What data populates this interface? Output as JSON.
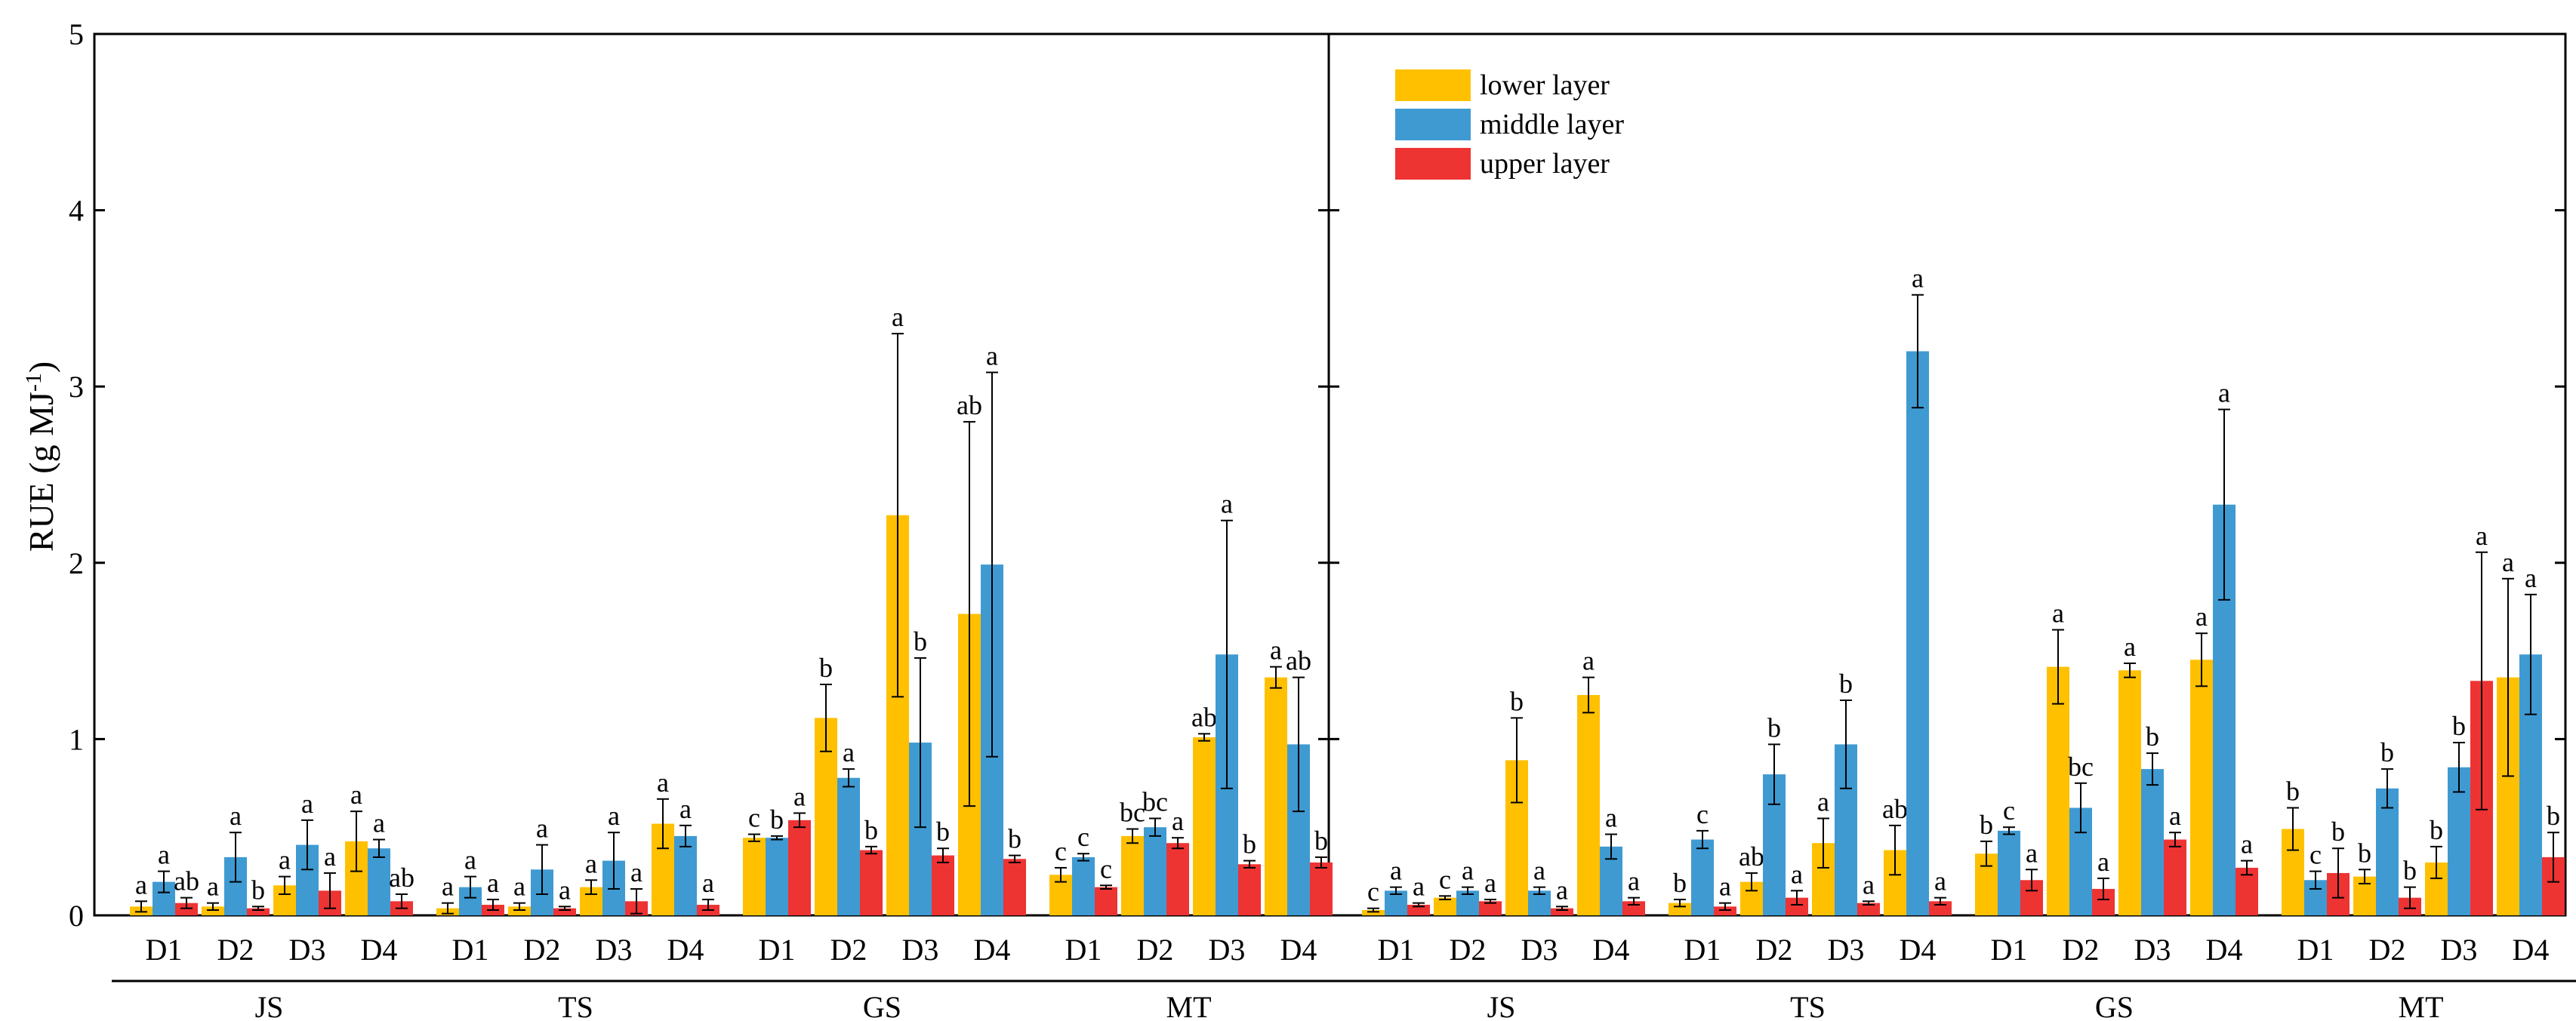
{
  "chart_data": {
    "type": "bar",
    "ylabel": "RUE (g MJ",
    "ylabel_superscript": "-1",
    "ylabel_close": ")",
    "ylim": [
      0,
      5
    ],
    "yticks": [
      "0",
      "1",
      "2",
      "3",
      "4",
      "5"
    ],
    "series": [
      {
        "name": "lower layer",
        "color": "#FFC000"
      },
      {
        "name": "middle layer",
        "color": "#3F9AD2"
      },
      {
        "name": "upper layer",
        "color": "#EE3333"
      }
    ],
    "legend": {
      "location": "top",
      "panel": "right",
      "items": [
        "lower layer",
        "middle layer",
        "upper layer"
      ]
    },
    "panels": [
      {
        "groups": [
          {
            "name": "JS",
            "categories": [
              {
                "label": "D1",
                "values": [
                  0.05,
                  0.19,
                  0.07
                ],
                "errors": [
                  0.03,
                  0.06,
                  0.03
                ],
                "letters": [
                  "a",
                  "a",
                  "ab"
                ]
              },
              {
                "label": "D2",
                "values": [
                  0.05,
                  0.33,
                  0.04
                ],
                "errors": [
                  0.02,
                  0.14,
                  0.01
                ],
                "letters": [
                  "a",
                  "a",
                  "b"
                ]
              },
              {
                "label": "D3",
                "values": [
                  0.17,
                  0.4,
                  0.14
                ],
                "errors": [
                  0.05,
                  0.14,
                  0.1
                ],
                "letters": [
                  "a",
                  "a",
                  "a"
                ]
              },
              {
                "label": "D4",
                "values": [
                  0.42,
                  0.38,
                  0.08
                ],
                "errors": [
                  0.17,
                  0.05,
                  0.04
                ],
                "letters": [
                  "a",
                  "a",
                  "ab"
                ]
              }
            ]
          },
          {
            "name": "TS",
            "categories": [
              {
                "label": "D1",
                "values": [
                  0.04,
                  0.16,
                  0.06
                ],
                "errors": [
                  0.03,
                  0.06,
                  0.03
                ],
                "letters": [
                  "a",
                  "a",
                  "a"
                ]
              },
              {
                "label": "D2",
                "values": [
                  0.05,
                  0.26,
                  0.04
                ],
                "errors": [
                  0.02,
                  0.14,
                  0.01
                ],
                "letters": [
                  "a",
                  "a",
                  "a"
                ]
              },
              {
                "label": "D3",
                "values": [
                  0.16,
                  0.31,
                  0.08
                ],
                "errors": [
                  0.04,
                  0.16,
                  0.07
                ],
                "letters": [
                  "a",
                  "a",
                  "a"
                ]
              },
              {
                "label": "D4",
                "values": [
                  0.52,
                  0.45,
                  0.06
                ],
                "errors": [
                  0.14,
                  0.06,
                  0.03
                ],
                "letters": [
                  "a",
                  "a",
                  "a"
                ]
              }
            ]
          },
          {
            "name": "GS",
            "categories": [
              {
                "label": "D1",
                "values": [
                  0.44,
                  0.44,
                  0.54
                ],
                "errors": [
                  0.02,
                  0.01,
                  0.04
                ],
                "letters": [
                  "c",
                  "b",
                  "a"
                ]
              },
              {
                "label": "D2",
                "values": [
                  1.12,
                  0.78,
                  0.37
                ],
                "errors": [
                  0.19,
                  0.05,
                  0.02
                ],
                "letters": [
                  "b",
                  "a",
                  "b"
                ]
              },
              {
                "label": "D3",
                "values": [
                  2.27,
                  0.98,
                  0.34
                ],
                "errors": [
                  1.03,
                  0.48,
                  0.04
                ],
                "letters": [
                  "a",
                  "b",
                  "b"
                ]
              },
              {
                "label": "D4",
                "values": [
                  1.71,
                  1.99,
                  0.32
                ],
                "errors": [
                  1.09,
                  1.09,
                  0.02
                ],
                "letters": [
                  "ab",
                  "a",
                  "b"
                ]
              }
            ]
          },
          {
            "name": "MT",
            "categories": [
              {
                "label": "D1",
                "values": [
                  0.23,
                  0.33,
                  0.16
                ],
                "errors": [
                  0.04,
                  0.02,
                  0.01
                ],
                "letters": [
                  "c",
                  "c",
                  "c"
                ]
              },
              {
                "label": "D2",
                "values": [
                  0.45,
                  0.5,
                  0.41
                ],
                "errors": [
                  0.04,
                  0.05,
                  0.03
                ],
                "letters": [
                  "bc",
                  "bc",
                  "a"
                ]
              },
              {
                "label": "D3",
                "values": [
                  1.01,
                  1.48,
                  0.29
                ],
                "errors": [
                  0.02,
                  0.76,
                  0.02
                ],
                "letters": [
                  "ab",
                  "a",
                  "b"
                ]
              },
              {
                "label": "D4",
                "values": [
                  1.35,
                  0.97,
                  0.3
                ],
                "errors": [
                  0.06,
                  0.38,
                  0.03
                ],
                "letters": [
                  "a",
                  "ab",
                  "b"
                ]
              }
            ]
          }
        ]
      },
      {
        "groups": [
          {
            "name": "JS",
            "categories": [
              {
                "label": "D1",
                "values": [
                  0.03,
                  0.14,
                  0.06
                ],
                "errors": [
                  0.01,
                  0.02,
                  0.01
                ],
                "letters": [
                  "c",
                  "a",
                  "a"
                ]
              },
              {
                "label": "D2",
                "values": [
                  0.1,
                  0.14,
                  0.08
                ],
                "errors": [
                  0.01,
                  0.02,
                  0.01
                ],
                "letters": [
                  "c",
                  "a",
                  "a"
                ]
              },
              {
                "label": "D3",
                "values": [
                  0.88,
                  0.14,
                  0.04
                ],
                "errors": [
                  0.24,
                  0.02,
                  0.01
                ],
                "letters": [
                  "b",
                  "a",
                  "a"
                ]
              },
              {
                "label": "D4",
                "values": [
                  1.25,
                  0.39,
                  0.08
                ],
                "errors": [
                  0.1,
                  0.07,
                  0.02
                ],
                "letters": [
                  "a",
                  "a",
                  "a"
                ]
              }
            ]
          },
          {
            "name": "TS",
            "categories": [
              {
                "label": "D1",
                "values": [
                  0.07,
                  0.43,
                  0.05
                ],
                "errors": [
                  0.02,
                  0.05,
                  0.02
                ],
                "letters": [
                  "b",
                  "c",
                  "a"
                ]
              },
              {
                "label": "D2",
                "values": [
                  0.19,
                  0.8,
                  0.1
                ],
                "errors": [
                  0.05,
                  0.17,
                  0.04
                ],
                "letters": [
                  "ab",
                  "b",
                  "a"
                ]
              },
              {
                "label": "D3",
                "values": [
                  0.41,
                  0.97,
                  0.07
                ],
                "errors": [
                  0.14,
                  0.25,
                  0.01
                ],
                "letters": [
                  "a",
                  "b",
                  "a"
                ]
              },
              {
                "label": "D4",
                "values": [
                  0.37,
                  3.2,
                  0.08
                ],
                "errors": [
                  0.14,
                  0.32,
                  0.02
                ],
                "letters": [
                  "ab",
                  "a",
                  "a"
                ]
              }
            ]
          },
          {
            "name": "GS",
            "categories": [
              {
                "label": "D1",
                "values": [
                  0.35,
                  0.48,
                  0.2
                ],
                "errors": [
                  0.07,
                  0.02,
                  0.06
                ],
                "letters": [
                  "b",
                  "c",
                  "a"
                ]
              },
              {
                "label": "D2",
                "values": [
                  1.41,
                  0.61,
                  0.15
                ],
                "errors": [
                  0.21,
                  0.14,
                  0.06
                ],
                "letters": [
                  "a",
                  "bc",
                  "a"
                ]
              },
              {
                "label": "D3",
                "values": [
                  1.39,
                  0.83,
                  0.43
                ],
                "errors": [
                  0.04,
                  0.09,
                  0.04
                ],
                "letters": [
                  "a",
                  "b",
                  "a"
                ]
              },
              {
                "label": "D4",
                "values": [
                  1.45,
                  2.33,
                  0.27
                ],
                "errors": [
                  0.15,
                  0.54,
                  0.04
                ],
                "letters": [
                  "a",
                  "a",
                  "a"
                ]
              }
            ]
          },
          {
            "name": "MT",
            "categories": [
              {
                "label": "D1",
                "values": [
                  0.49,
                  0.2,
                  0.24
                ],
                "errors": [
                  0.12,
                  0.05,
                  0.14
                ],
                "letters": [
                  "b",
                  "c",
                  "b"
                ]
              },
              {
                "label": "D2",
                "values": [
                  0.22,
                  0.72,
                  0.1
                ],
                "errors": [
                  0.04,
                  0.11,
                  0.06
                ],
                "letters": [
                  "b",
                  "b",
                  "b"
                ]
              },
              {
                "label": "D3",
                "values": [
                  0.3,
                  0.84,
                  1.33
                ],
                "errors": [
                  0.09,
                  0.14,
                  0.73
                ],
                "letters": [
                  "b",
                  "b",
                  "a"
                ]
              },
              {
                "label": "D4",
                "values": [
                  1.35,
                  1.48,
                  0.33
                ],
                "errors": [
                  0.56,
                  0.34,
                  0.14
                ],
                "letters": [
                  "a",
                  "a",
                  "b"
                ]
              }
            ]
          }
        ]
      }
    ]
  }
}
